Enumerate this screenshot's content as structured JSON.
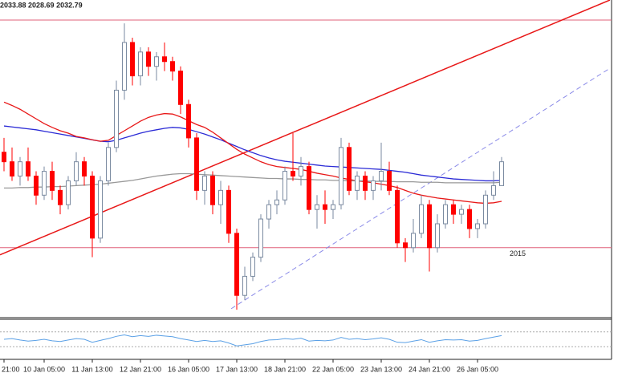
{
  "chart_data": {
    "type": "candlestick",
    "header": "2033.88 2028.69 2032.79",
    "categories": [
      "21:00",
      null,
      null,
      null,
      null,
      "10 Jan 05:00",
      null,
      null,
      null,
      null,
      null,
      "11 Jan 13:00",
      null,
      null,
      null,
      null,
      null,
      "12 Jan 21:00",
      null,
      null,
      null,
      null,
      null,
      "16 Jan 05:00",
      null,
      null,
      null,
      null,
      null,
      "17 Jan 13:00",
      null,
      null,
      null,
      null,
      null,
      "18 Jan 21:00",
      null,
      null,
      null,
      null,
      null,
      "22 Jan 05:00",
      null,
      null,
      null,
      null,
      null,
      "23 Jan 13:00",
      null,
      null,
      null,
      null,
      null,
      "24 Jan 21:00",
      null,
      null,
      null,
      null,
      null,
      "26 Jan 05:00",
      null,
      null,
      null
    ],
    "open": [
      2035,
      2033,
      2030,
      2033,
      2030,
      2026,
      2031,
      2027,
      2024,
      2029,
      2033,
      2030,
      2017,
      2029,
      2036,
      2048,
      2058,
      2051,
      2056,
      2053,
      2055,
      2054,
      2052,
      2045,
      2038,
      2027,
      2030,
      2024,
      2027,
      2018,
      2005,
      2009,
      2013,
      2021,
      2024,
      2025,
      2031,
      2030,
      2032,
      2023,
      2024,
      2023,
      2024,
      2036,
      2027,
      2030,
      2027,
      2029,
      2031,
      2027,
      2016,
      2015,
      2018,
      2024,
      2015,
      2020,
      2024,
      2022,
      2023,
      2019,
      2020,
      2026,
      2028
    ],
    "high": [
      2038,
      2036,
      2034,
      2036,
      2031,
      2032,
      2033,
      2028,
      2030,
      2035,
      2034,
      2031,
      2030,
      2037,
      2050,
      2062,
      2059,
      2057,
      2057,
      2056,
      2058,
      2055,
      2053,
      2046,
      2039,
      2031,
      2031,
      2029,
      2028,
      2019,
      2011,
      2014,
      2022,
      2025,
      2027,
      2032,
      2039,
      2034,
      2033,
      2026,
      2027,
      2025,
      2038,
      2037,
      2031,
      2031,
      2030,
      2037,
      2033,
      2028,
      2017,
      2021,
      2026,
      2025,
      2022,
      2025,
      2025,
      2024,
      2024,
      2021,
      2027,
      2031,
      2034
    ],
    "low": [
      2031,
      2029,
      2028,
      2029,
      2024,
      2025,
      2025,
      2022,
      2023,
      2028,
      2028,
      2013,
      2016,
      2028,
      2035,
      2046,
      2049,
      2049,
      2051,
      2050,
      2052,
      2050,
      2043,
      2036,
      2025,
      2024,
      2022,
      2020,
      2016,
      2002,
      2004,
      2008,
      2012,
      2019,
      2022,
      2024,
      2029,
      2028,
      2022,
      2019,
      2020,
      2021,
      2023,
      2026,
      2025,
      2025,
      2025,
      2027,
      2026,
      2015,
      2012,
      2014,
      2017,
      2010,
      2014,
      2019,
      2020,
      2020,
      2017,
      2017,
      2019,
      2025,
      2028
    ],
    "close": [
      2033,
      2030,
      2033,
      2030,
      2026,
      2031,
      2027,
      2024,
      2029,
      2033,
      2030,
      2017,
      2029,
      2036,
      2048,
      2058,
      2051,
      2056,
      2053,
      2055,
      2054,
      2052,
      2045,
      2038,
      2027,
      2030,
      2024,
      2027,
      2018,
      2005,
      2009,
      2013,
      2021,
      2024,
      2025,
      2031,
      2030,
      2032,
      2023,
      2024,
      2023,
      2024,
      2036,
      2027,
      2030,
      2027,
      2029,
      2031,
      2027,
      2016,
      2015,
      2018,
      2024,
      2015,
      2020,
      2024,
      2022,
      2023,
      2019,
      2020,
      2026,
      2028,
      2033
    ],
    "up_color": "#ffffff",
    "up_line": "#7a8aa0",
    "down_color": "#ff0000",
    "ylim": [
      2000.5,
      2066.9
    ],
    "overlays": [
      {
        "color": "#2b2bd6",
        "values": [
          2040.5,
          2040.3,
          2040.1,
          2039.9,
          2039.7,
          2039.4,
          2039.1,
          2038.8,
          2038.5,
          2038.2,
          2037.9,
          2037.6,
          2037.3,
          2037.2,
          2037.5,
          2038,
          2038.5,
          2039,
          2039.4,
          2039.7,
          2040,
          2040.2,
          2040.1,
          2039.8,
          2039.3,
          2038.8,
          2038.2,
          2037.6,
          2036.9,
          2036.2,
          2035.5,
          2034.9,
          2034.3,
          2033.8,
          2033.4,
          2033.1,
          2032.9,
          2032.7,
          2032.5,
          2032.3,
          2032.1,
          2032,
          2031.9,
          2031.8,
          2031.7,
          2031.6,
          2031.5,
          2031.4,
          2031.2,
          2031,
          2030.8,
          2030.5,
          2030.2,
          2030,
          2029.8,
          2029.6,
          2029.4,
          2029.3,
          2029.2,
          2029.1,
          2029,
          2029,
          2029.1
        ]
      },
      {
        "color": "#e81818",
        "values": [
          2045.5,
          2044.8,
          2044,
          2043,
          2042,
          2041,
          2040.2,
          2039.5,
          2039,
          2038.3,
          2038,
          2037.6,
          2037.3,
          2037.5,
          2038.5,
          2039.5,
          2040.5,
          2041.5,
          2042.3,
          2042.8,
          2043.1,
          2043,
          2042.4,
          2041.6,
          2040.8,
          2040.2,
          2039.2,
          2038,
          2036.8,
          2035.6,
          2034.6,
          2033.8,
          2033,
          2032.4,
          2032,
          2031.8,
          2031.6,
          2031.4,
          2031,
          2030.6,
          2030.3,
          2030,
          2029.6,
          2029.3,
          2029,
          2028.8,
          2028.6,
          2028.3,
          2028,
          2027.6,
          2027,
          2026.4,
          2026,
          2025.7,
          2025.4,
          2025.2,
          2025,
          2024.8,
          2024.6,
          2024.4,
          2024.3,
          2024.4,
          2024.7
        ]
      },
      {
        "color": "#999999",
        "values": [
          2027.5,
          2027.5,
          2027.6,
          2027.6,
          2027.7,
          2027.7,
          2027.8,
          2027.8,
          2027.9,
          2028,
          2028.1,
          2028.2,
          2028.3,
          2028.5,
          2028.7,
          2028.9,
          2029.1,
          2029.4,
          2029.7,
          2030,
          2030.2,
          2030.4,
          2030.5,
          2030.5,
          2030.4,
          2030.3,
          2030.2,
          2030.1,
          2030,
          2029.9,
          2029.8,
          2029.7,
          2029.6,
          2029.5,
          2029.5,
          2029.4,
          2029.4,
          2029.3,
          2029.3,
          2029.2,
          2029.2,
          2029.1,
          2029.1,
          2029,
          2029,
          2029,
          2028.9,
          2028.9,
          2028.9,
          2028.8,
          2028.8,
          2028.8,
          2028.7,
          2028.7,
          2028.7,
          2028.6,
          2028.6,
          2028.6,
          2028.6,
          2028.6,
          2028.6,
          2028.6,
          2028.7
        ]
      }
    ],
    "trendlines": [
      {
        "color": "#e81818",
        "dashed": false,
        "x": [
          -0.5,
          75.5
        ],
        "y": [
          2013.5,
          2066.9
        ]
      },
      {
        "color": "#8a8ae8",
        "dashed": true,
        "x": [
          28.3,
          75.5
        ],
        "y": [
          2002.2,
          2052.6
        ]
      }
    ],
    "levels": [
      {
        "value": 2062.7,
        "color": "#e0607a",
        "show_label": false
      },
      {
        "value": 2015,
        "color": "#e0607a",
        "show_label": true
      }
    ],
    "oscillator": {
      "color": "#5aa0e6",
      "ylim": [
        0,
        100
      ],
      "levels": [
        30,
        70
      ],
      "values": [
        50,
        52,
        48,
        45,
        47,
        50,
        46,
        44,
        48,
        52,
        50,
        42,
        47,
        52,
        58,
        62,
        57,
        60,
        58,
        61,
        59,
        57,
        52,
        48,
        44,
        47,
        44,
        46,
        40,
        32,
        35,
        38,
        44,
        48,
        49,
        52,
        50,
        53,
        45,
        47,
        46,
        48,
        55,
        50,
        52,
        49,
        51,
        54,
        50,
        42,
        41,
        45,
        49,
        42,
        46,
        49,
        48,
        49,
        45,
        47,
        52,
        56,
        60
      ]
    }
  }
}
